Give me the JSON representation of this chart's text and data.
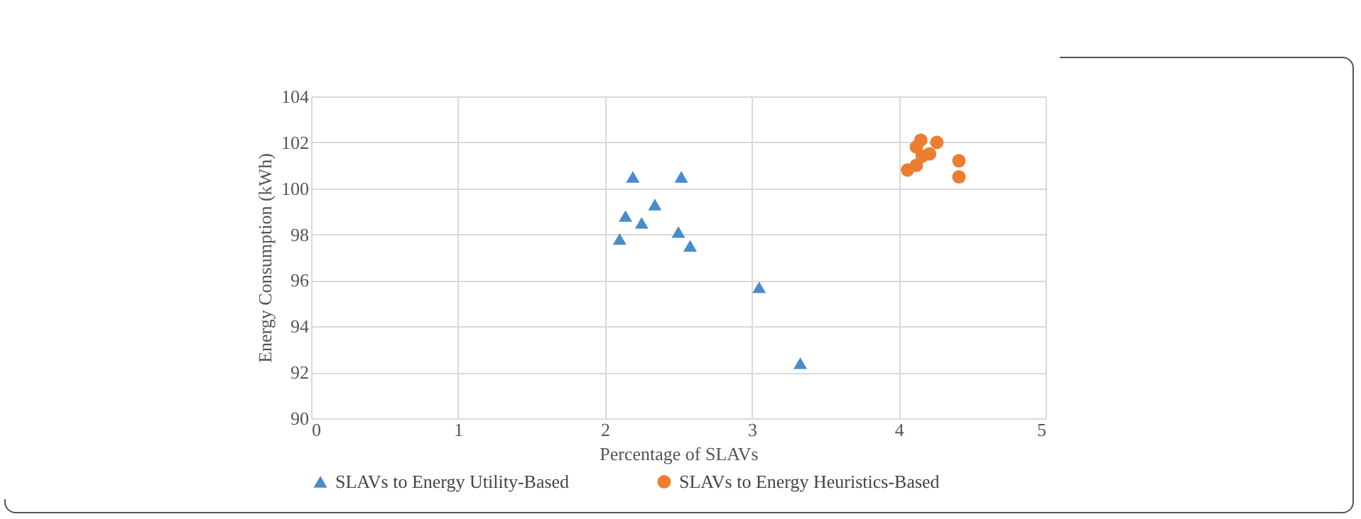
{
  "chart_data": {
    "type": "scatter",
    "xlabel": "Percentage of SLAVs",
    "ylabel": "Energy Consumption (kWh)",
    "xlim": [
      0,
      5
    ],
    "xticks": [
      0,
      1,
      2,
      3,
      4,
      5
    ],
    "ylim": [
      90,
      104
    ],
    "yticks": [
      90,
      92,
      94,
      96,
      98,
      100,
      102,
      104
    ],
    "grid": true,
    "legend": "bottom",
    "series": [
      {
        "name": "SLAVs to Energy Utility-Based",
        "color": "#4a8ccb",
        "marker": "triangle",
        "x": [
          2.19,
          2.52,
          2.34,
          2.14,
          2.25,
          2.1,
          2.5,
          2.58,
          3.05,
          3.33
        ],
        "values": [
          100.5,
          100.5,
          99.3,
          98.8,
          98.5,
          97.8,
          98.1,
          97.5,
          95.7,
          92.4
        ]
      },
      {
        "name": "SLAVs to Energy Heuristics-Based",
        "color": "#ed7d31",
        "marker": "circle",
        "x": [
          4.06,
          4.12,
          4.12,
          4.15,
          4.26,
          4.21,
          4.16,
          4.41,
          4.41
        ],
        "values": [
          100.8,
          101.0,
          101.8,
          102.1,
          102.0,
          101.5,
          101.4,
          101.2,
          100.5
        ]
      }
    ]
  }
}
